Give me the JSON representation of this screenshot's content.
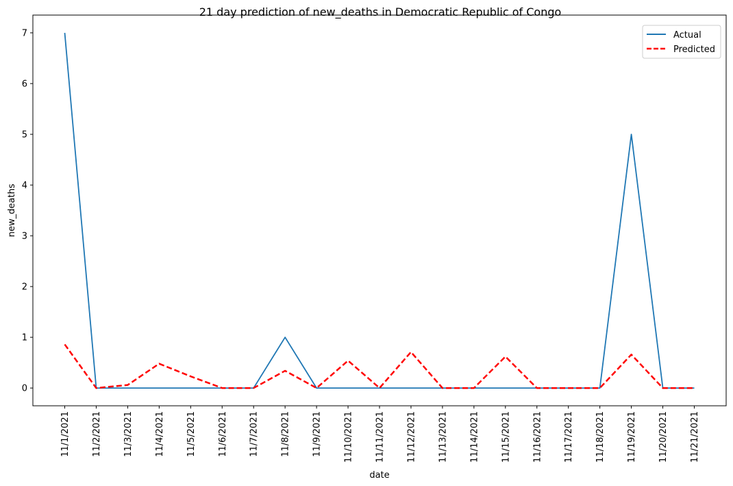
{
  "chart_data": {
    "type": "line",
    "title": "21 day prediction of new_deaths in Democratic Republic of Congo",
    "xlabel": "date",
    "ylabel": "new_deaths",
    "x": [
      "11/1/2021",
      "11/2/2021",
      "11/3/2021",
      "11/4/2021",
      "11/5/2021",
      "11/6/2021",
      "11/7/2021",
      "11/8/2021",
      "11/9/2021",
      "11/10/2021",
      "11/11/2021",
      "11/12/2021",
      "11/13/2021",
      "11/14/2021",
      "11/15/2021",
      "11/16/2021",
      "11/17/2021",
      "11/18/2021",
      "11/19/2021",
      "11/20/2021",
      "11/21/2021"
    ],
    "ylim": [
      -0.35,
      7.35
    ],
    "yticks": [
      0,
      1,
      2,
      3,
      4,
      5,
      6,
      7
    ],
    "grid": false,
    "legend": "top-right",
    "series": [
      {
        "name": "Actual",
        "color": "#1f77b4",
        "style": "solid",
        "values": [
          7,
          0,
          0,
          0,
          0,
          0,
          0,
          1,
          0,
          0,
          0,
          0,
          0,
          0,
          0,
          0,
          0,
          0,
          5,
          0,
          0
        ]
      },
      {
        "name": "Predicted",
        "color": "#ff0000",
        "style": "dashed",
        "values": [
          0.86,
          0.0,
          0.06,
          0.48,
          0.23,
          0.0,
          0.0,
          0.34,
          0.0,
          0.54,
          0.0,
          0.71,
          0.0,
          0.0,
          0.62,
          0.0,
          0.0,
          0.0,
          0.66,
          0.0,
          0.0
        ]
      }
    ]
  }
}
